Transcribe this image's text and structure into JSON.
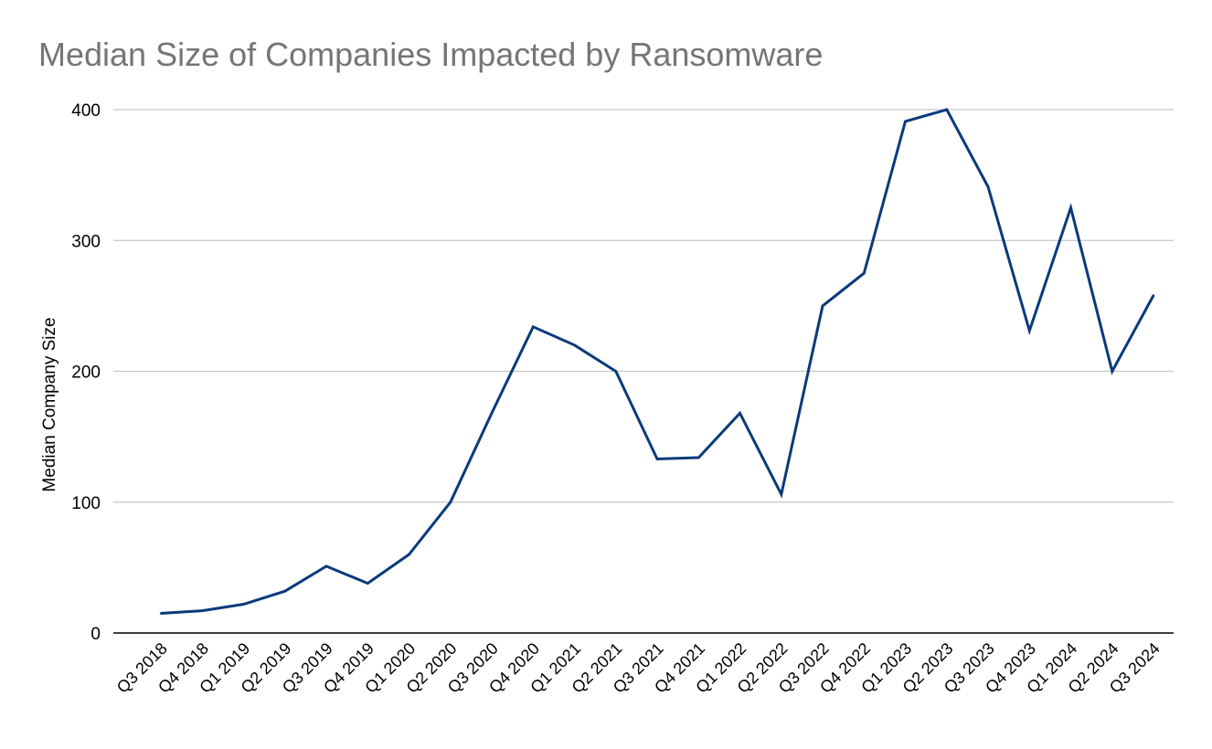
{
  "chart_data": {
    "type": "line",
    "title": "Median Size of Companies Impacted by Ransomware",
    "xlabel": "",
    "ylabel": "Median Company Size",
    "ylim": [
      0,
      400
    ],
    "yticks": [
      "0",
      "100",
      "200",
      "300",
      "400"
    ],
    "grid": true,
    "categories": [
      "Q3 2018",
      "Q4 2018",
      "Q1 2019",
      "Q2 2019",
      "Q3 2019",
      "Q4 2019",
      "Q1 2020",
      "Q2 2020",
      "Q3 2020",
      "Q4 2020",
      "Q1 2021",
      "Q2 2021",
      "Q3 2021",
      "Q4 2021",
      "Q1 2022",
      "Q2 2022",
      "Q3 2022",
      "Q4 2022",
      "Q1 2023",
      "Q2 2023",
      "Q3 2023",
      "Q4 2023",
      "Q1 2024",
      "Q2 2024",
      "Q3 2024"
    ],
    "series": [
      {
        "values": [
          15,
          17,
          22,
          32,
          51,
          38,
          60,
          100,
          168,
          234,
          220,
          200,
          133,
          134,
          168,
          106,
          250,
          275,
          391,
          400,
          341,
          231,
          325,
          200,
          258
        ]
      }
    ],
    "colors": {
      "line": "#0b3a7a",
      "grid": "#c6c6c6",
      "axis": "#000000",
      "title": "#757575"
    }
  }
}
